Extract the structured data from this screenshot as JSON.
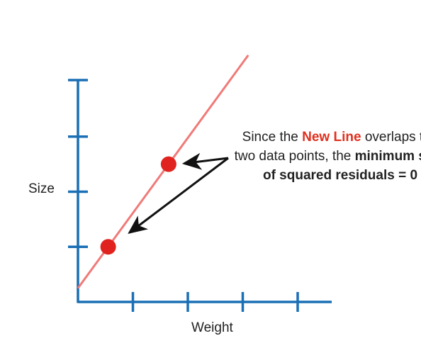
{
  "chart_data": {
    "type": "scatter",
    "xlabel": "Weight",
    "ylabel": "Size",
    "x_ticks": 4,
    "y_ticks": 4,
    "grid": false,
    "points": [
      {
        "x": 0.55,
        "y": 1.0
      },
      {
        "x": 1.65,
        "y": 2.5
      }
    ],
    "line": {
      "name": "New Line",
      "slope": 1.3636,
      "intercept": 0.25,
      "x_from": 0,
      "x_to": 3.1
    },
    "xlim": [
      0,
      4.6
    ],
    "ylim": [
      0,
      4
    ],
    "colors": {
      "axis": "#1a6fb5",
      "line": "#f07a78",
      "point": "#e0231e",
      "arrow": "#111111"
    }
  },
  "annotation": {
    "line1_pre": "Since the ",
    "line1_highlight": "New Line",
    "line1_post": " overlaps the",
    "line2_pre": "two data points, the ",
    "line2_bold": "minimum sum",
    "line3_bold": "of squared residuals = 0"
  }
}
